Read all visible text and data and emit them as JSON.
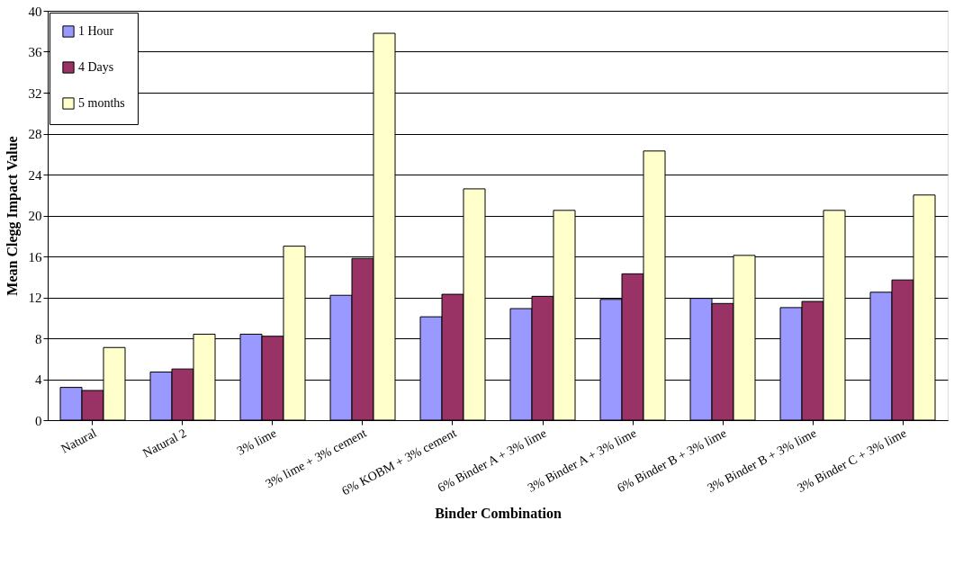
{
  "chart_data": {
    "type": "bar",
    "xlabel": "Binder Combination",
    "ylabel": "Mean Clegg Impact Value",
    "categories": [
      "Natural",
      "Natural 2",
      "3% lime",
      "3% lime + 3% cement",
      "6% KOBM + 3% cement",
      "6% Binder A + 3% lime",
      "3% Binder A + 3% lime",
      "6% Binder B + 3% lime",
      "3% Binder B + 3% lime",
      "3% Binder C + 3% lime"
    ],
    "series": [
      {
        "name": "1 Hour",
        "color": "#9999ff",
        "values": [
          3.2,
          4.7,
          8.4,
          12.2,
          10.1,
          10.9,
          11.8,
          11.9,
          11.0,
          12.5
        ]
      },
      {
        "name": "4 Days",
        "color": "#993366",
        "values": [
          2.9,
          5.0,
          8.2,
          15.8,
          12.3,
          12.1,
          14.3,
          11.4,
          11.6,
          13.7
        ]
      },
      {
        "name": "5 months",
        "color": "#ffffcc",
        "values": [
          7.1,
          8.4,
          17.0,
          37.8,
          22.6,
          20.5,
          26.3,
          16.1,
          20.5,
          22.0
        ]
      }
    ],
    "ylim": [
      0,
      40
    ],
    "yticks": [
      0,
      4,
      8,
      12,
      16,
      20,
      24,
      28,
      32,
      36,
      40
    ],
    "grid": "y",
    "legend": "top left"
  }
}
